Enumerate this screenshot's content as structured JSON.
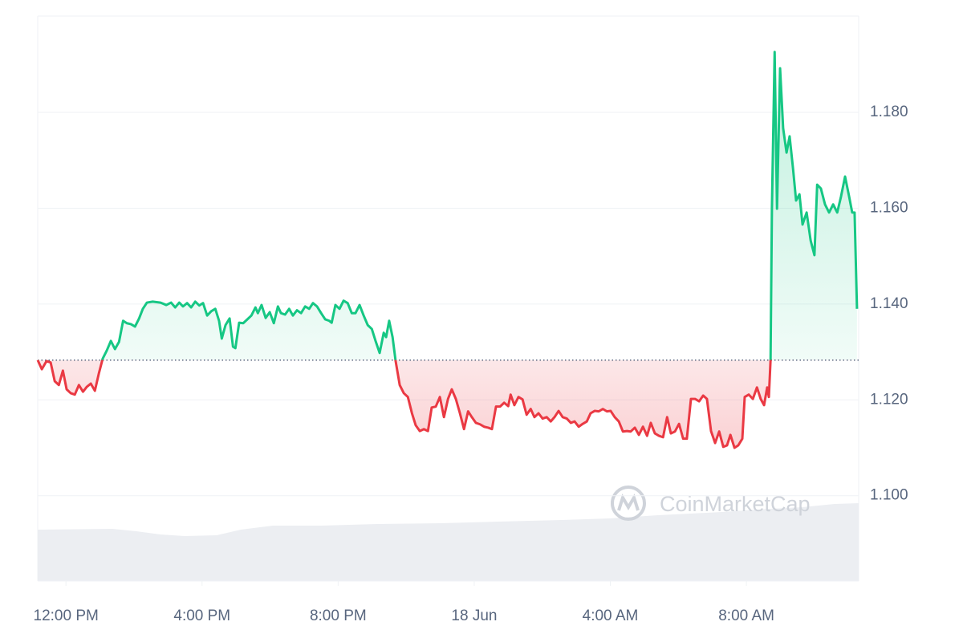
{
  "chart_data": {
    "type": "line",
    "watermark": "CoinMarketCap",
    "up_color": "#16c784",
    "down_color": "#ea3943",
    "baseline": 1.1283,
    "grid": true,
    "xlim": [
      -0.83,
      23.3
    ],
    "ylim": [
      1.0822,
      1.2001
    ],
    "xticks": [
      {
        "value": 0,
        "label": "12:00 PM"
      },
      {
        "value": 4,
        "label": "4:00 PM"
      },
      {
        "value": 8,
        "label": "8:00 PM"
      },
      {
        "value": 12,
        "label": "18 Jun"
      },
      {
        "value": 16,
        "label": "4:00 AM"
      },
      {
        "value": 20,
        "label": "8:00 AM"
      }
    ],
    "yticks": [
      {
        "value": 1.1,
        "label": "1.100"
      },
      {
        "value": 1.12,
        "label": "1.120"
      },
      {
        "value": 1.14,
        "label": "1.140"
      },
      {
        "value": 1.16,
        "label": "1.160"
      },
      {
        "value": 1.18,
        "label": "1.180"
      }
    ],
    "x": [
      -0.83,
      -0.71,
      -0.57,
      -0.45,
      -0.33,
      -0.21,
      -0.09,
      0.02,
      0.14,
      0.26,
      0.38,
      0.5,
      0.61,
      0.73,
      0.85,
      0.97,
      1.08,
      1.2,
      1.32,
      1.44,
      1.56,
      1.68,
      1.79,
      1.91,
      2.03,
      2.15,
      2.26,
      2.38,
      2.55,
      2.78,
      2.95,
      3.09,
      3.21,
      3.33,
      3.44,
      3.56,
      3.68,
      3.8,
      3.92,
      4.03,
      4.15,
      4.27,
      4.39,
      4.5,
      4.58,
      4.69,
      4.81,
      4.91,
      4.98,
      5.09,
      5.21,
      5.33,
      5.45,
      5.57,
      5.64,
      5.75,
      5.87,
      5.99,
      6.11,
      6.23,
      6.32,
      6.44,
      6.56,
      6.67,
      6.79,
      6.91,
      7.03,
      7.15,
      7.26,
      7.38,
      7.5,
      7.62,
      7.74,
      7.81,
      7.92,
      8.04,
      8.16,
      8.28,
      8.4,
      8.51,
      8.63,
      8.75,
      8.87,
      8.99,
      9.1,
      9.22,
      9.34,
      9.41,
      9.5,
      9.6,
      9.69,
      9.81,
      9.93,
      10.05,
      10.17,
      10.28,
      10.4,
      10.52,
      10.64,
      10.75,
      10.87,
      10.99,
      11.11,
      11.23,
      11.34,
      11.46,
      11.58,
      11.7,
      11.82,
      11.93,
      12.05,
      12.17,
      12.29,
      12.41,
      12.52,
      12.64,
      12.76,
      12.88,
      13.0,
      13.07,
      13.18,
      13.3,
      13.42,
      13.54,
      13.66,
      13.77,
      13.89,
      14.01,
      14.13,
      14.25,
      14.36,
      14.48,
      14.6,
      14.72,
      14.84,
      14.95,
      15.07,
      15.19,
      15.31,
      15.42,
      15.54,
      15.66,
      15.78,
      15.9,
      16.01,
      16.13,
      16.25,
      16.37,
      16.49,
      16.6,
      16.72,
      16.84,
      16.96,
      17.08,
      17.19,
      17.31,
      17.43,
      17.55,
      17.67,
      17.78,
      17.9,
      18.02,
      18.14,
      18.25,
      18.37,
      18.49,
      18.61,
      18.73,
      18.84,
      18.96,
      19.08,
      19.2,
      19.32,
      19.43,
      19.53,
      19.65,
      19.76,
      19.88,
      19.95,
      20.07,
      20.19,
      20.31,
      20.42,
      20.52,
      20.61,
      20.66,
      20.71,
      20.75,
      20.83,
      20.9,
      20.99,
      21.08,
      21.18,
      21.27,
      21.37,
      21.46,
      21.56,
      21.65,
      21.77,
      21.89,
      22.0,
      22.08,
      22.19,
      22.31,
      22.43,
      22.55,
      22.67,
      22.78,
      22.9,
      23.02,
      23.11,
      23.18,
      23.25
    ],
    "values": [
      1.1283,
      1.1264,
      1.1281,
      1.1278,
      1.1239,
      1.1231,
      1.1261,
      1.1222,
      1.1214,
      1.1211,
      1.1231,
      1.1217,
      1.1227,
      1.1234,
      1.1219,
      1.1256,
      1.1286,
      1.1303,
      1.1323,
      1.1306,
      1.1321,
      1.1365,
      1.136,
      1.1358,
      1.1353,
      1.137,
      1.139,
      1.1403,
      1.1405,
      1.1403,
      1.1398,
      1.1403,
      1.1393,
      1.1403,
      1.1395,
      1.1402,
      1.1393,
      1.1405,
      1.1397,
      1.1402,
      1.1376,
      1.1385,
      1.139,
      1.1365,
      1.1328,
      1.1356,
      1.137,
      1.1311,
      1.1308,
      1.1361,
      1.136,
      1.1368,
      1.1376,
      1.1393,
      1.1381,
      1.1398,
      1.1371,
      1.1383,
      1.136,
      1.1395,
      1.1381,
      1.1378,
      1.139,
      1.1376,
      1.1387,
      1.1381,
      1.1395,
      1.139,
      1.1402,
      1.1395,
      1.1381,
      1.1368,
      1.1365,
      1.1361,
      1.1398,
      1.139,
      1.1407,
      1.1402,
      1.1381,
      1.1381,
      1.1398,
      1.1376,
      1.1356,
      1.1348,
      1.1323,
      1.1298,
      1.134,
      1.1331,
      1.1365,
      1.1331,
      1.1281,
      1.1231,
      1.1214,
      1.1206,
      1.1172,
      1.1147,
      1.1135,
      1.1139,
      1.1135,
      1.1184,
      1.1186,
      1.1206,
      1.1164,
      1.1202,
      1.1222,
      1.1202,
      1.1172,
      1.1139,
      1.1176,
      1.1164,
      1.1152,
      1.1149,
      1.1144,
      1.1142,
      1.1139,
      1.1186,
      1.1186,
      1.1194,
      1.1187,
      1.1211,
      1.1189,
      1.1206,
      1.1201,
      1.1169,
      1.1181,
      1.1164,
      1.1172,
      1.1161,
      1.1164,
      1.1155,
      1.1164,
      1.1177,
      1.1164,
      1.1161,
      1.1152,
      1.1155,
      1.1144,
      1.115,
      1.1155,
      1.1172,
      1.1177,
      1.1176,
      1.1181,
      1.1176,
      1.1177,
      1.1164,
      1.1155,
      1.1134,
      1.1135,
      1.1134,
      1.1142,
      1.1127,
      1.1144,
      1.1125,
      1.1152,
      1.113,
      1.1125,
      1.1122,
      1.1164,
      1.113,
      1.1134,
      1.115,
      1.1119,
      1.1119,
      1.1202,
      1.1202,
      1.1197,
      1.1209,
      1.1202,
      1.1135,
      1.111,
      1.1134,
      1.1102,
      1.1105,
      1.1127,
      1.11,
      1.1105,
      1.1119,
      1.1206,
      1.1211,
      1.1202,
      1.1226,
      1.1202,
      1.1189,
      1.1226,
      1.1206,
      1.1283,
      1.1599,
      1.1926,
      1.1599,
      1.1892,
      1.1767,
      1.1716,
      1.175,
      1.1683,
      1.1616,
      1.1629,
      1.1566,
      1.1591,
      1.1532,
      1.1502,
      1.1649,
      1.1641,
      1.1608,
      1.1591,
      1.1608,
      1.1591,
      1.1624,
      1.1666,
      1.1624,
      1.1591,
      1.1591,
      1.139
    ]
  }
}
